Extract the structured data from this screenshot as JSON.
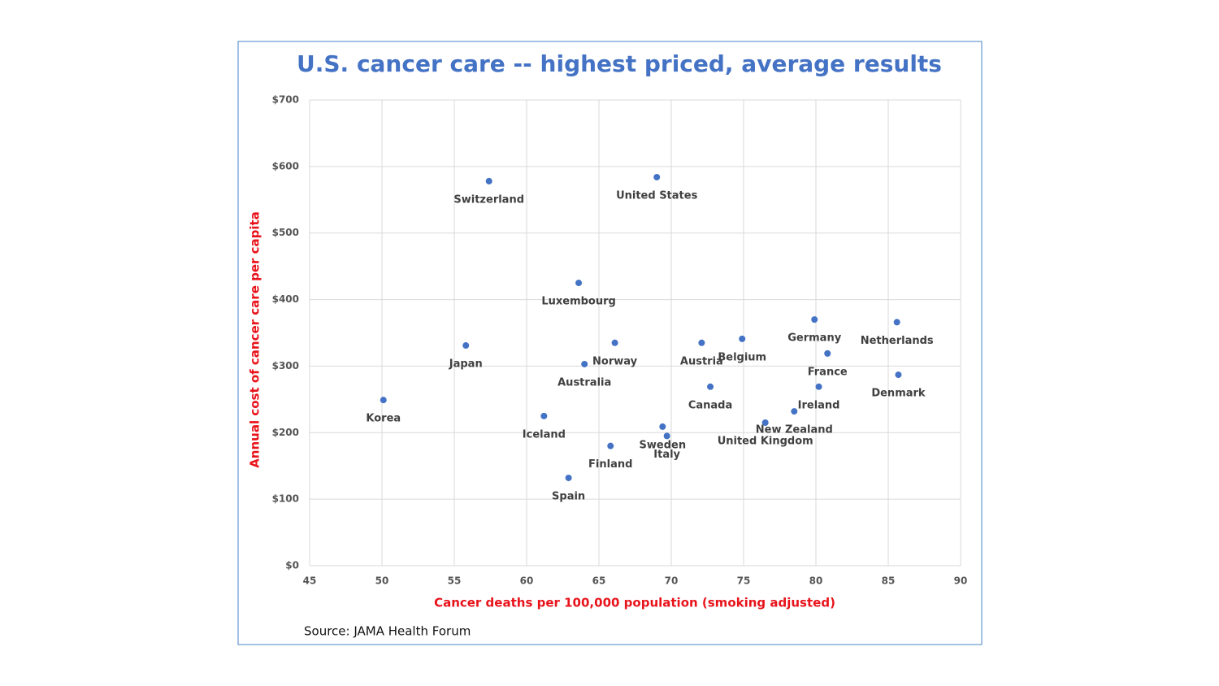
{
  "chart_data": {
    "type": "scatter",
    "title": "U.S. cancer care -- highest priced, average results",
    "x_label": "Cancer deaths per 100,000 population (smoking adjusted)",
    "y_label": "Annual cost of cancer care per capita",
    "source": "Source: JAMA Health Forum",
    "color": "#4472c4",
    "grid": true,
    "labels": [
      "Switzerland",
      "United States",
      "Luxembourg",
      "Japan",
      "Norway",
      "Australia",
      "Korea",
      "Iceland",
      "Finland",
      "Spain",
      "Sweden",
      "Italy",
      "Austria",
      "Belgium",
      "Canada",
      "United Kingdom",
      "New Zealand",
      "Ireland",
      "France",
      "Germany",
      "Netherlands",
      "Denmark"
    ],
    "x": [
      57.4,
      69.0,
      63.6,
      55.8,
      66.1,
      64.0,
      50.1,
      61.2,
      65.8,
      62.9,
      69.4,
      69.7,
      72.1,
      74.9,
      72.7,
      76.5,
      78.5,
      80.2,
      80.8,
      79.9,
      85.6,
      85.7
    ],
    "values": [
      578,
      584,
      425,
      331,
      335,
      303,
      249,
      225,
      180,
      132,
      209,
      195,
      335,
      341,
      269,
      215,
      232,
      269,
      319,
      370,
      366,
      287
    ],
    "xlim": [
      45,
      90
    ],
    "xticks": [
      45,
      50,
      55,
      60,
      65,
      70,
      75,
      80,
      85,
      90
    ],
    "ylim": [
      0,
      700
    ],
    "yticks": [
      {
        "value": 0,
        "label": "$0"
      },
      {
        "value": 100,
        "label": "$100"
      },
      {
        "value": 200,
        "label": "$200"
      },
      {
        "value": 300,
        "label": "$300"
      },
      {
        "value": 400,
        "label": "$400"
      },
      {
        "value": 500,
        "label": "$500"
      },
      {
        "value": 600,
        "label": "$600"
      },
      {
        "value": 700,
        "label": "$700"
      }
    ]
  }
}
